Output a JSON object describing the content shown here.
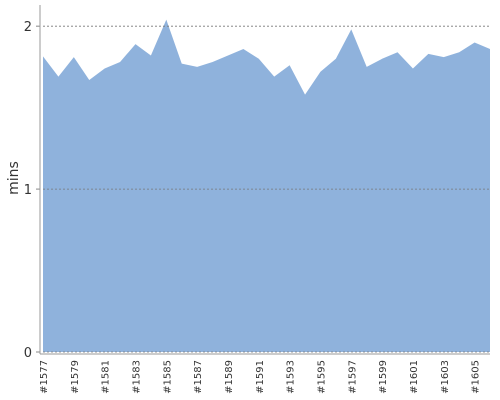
{
  "chart_data": {
    "type": "area",
    "y_label": "mins",
    "categories": [
      "#1577",
      null,
      "#1579",
      null,
      "#1581",
      null,
      "#1583",
      null,
      "#1585",
      null,
      "#1587",
      null,
      "#1589",
      null,
      "#1591",
      null,
      "#1593",
      null,
      "#1595",
      null,
      "#1597",
      null,
      "#1599",
      null,
      "#1601",
      null,
      "#1603",
      null,
      "#1605",
      null
    ],
    "values": [
      1.815,
      1.69,
      1.81,
      1.67,
      1.74,
      1.78,
      1.89,
      1.82,
      2.04,
      1.77,
      1.75,
      1.78,
      1.82,
      1.86,
      1.8,
      1.69,
      1.76,
      1.58,
      1.72,
      1.8,
      1.98,
      1.75,
      1.8,
      1.84,
      1.74,
      1.83,
      1.81,
      1.84,
      1.9,
      1.86
    ],
    "color": "#8fb2dc",
    "ylim": [
      0,
      2.13
    ],
    "yticks": [
      0,
      1,
      2
    ],
    "grid": true
  }
}
